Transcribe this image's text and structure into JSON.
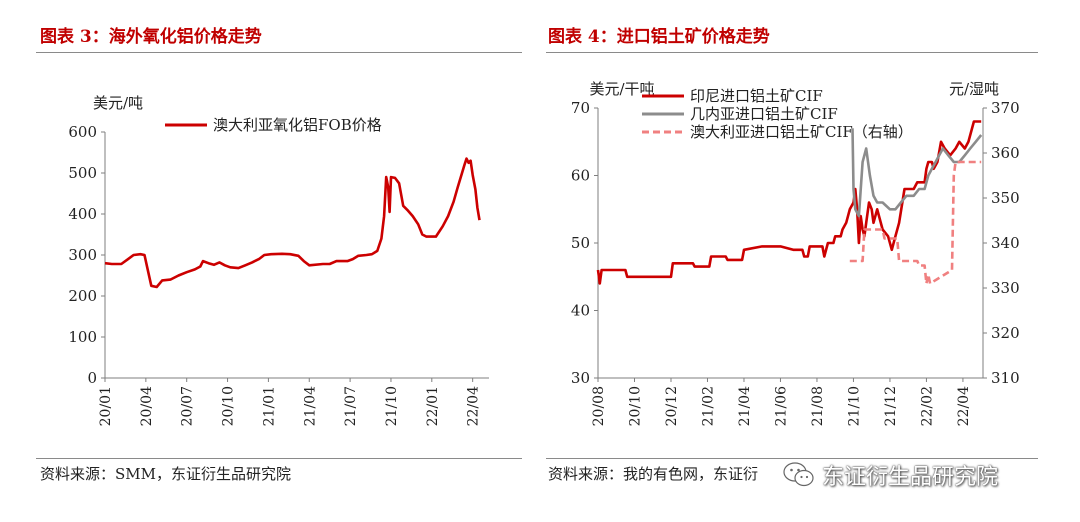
{
  "left_panel": {
    "title": "图表 3：海外氧化铝价格走势",
    "source": "资料来源：SMM，东证衍生品研究院"
  },
  "right_panel": {
    "title": "图表 4：进口铝土矿价格走势",
    "source": "资料来源：我的有色网，东证衍"
  },
  "watermark": {
    "text": "东证衍生品研究院",
    "icon": "wechat-icon"
  },
  "chart_data": [
    {
      "type": "line",
      "ylabel": "美元/吨",
      "ylim": [
        0,
        600
      ],
      "yticks": [
        0,
        100,
        200,
        300,
        400,
        500,
        600
      ],
      "xlim": [
        0,
        28.2
      ],
      "xticks": [
        {
          "label": "20/01",
          "x": 0
        },
        {
          "label": "20/04",
          "x": 3
        },
        {
          "label": "20/07",
          "x": 6
        },
        {
          "label": "20/10",
          "x": 9
        },
        {
          "label": "21/01",
          "x": 12
        },
        {
          "label": "21/04",
          "x": 15
        },
        {
          "label": "21/07",
          "x": 18
        },
        {
          "label": "21/10",
          "x": 21
        },
        {
          "label": "22/01",
          "x": 24
        },
        {
          "label": "22/04",
          "x": 27
        }
      ],
      "legend_position": "top-left",
      "series": [
        {
          "name": "澳大利亚氧化铝FOB价格",
          "color": "#cc0000",
          "style": "solid",
          "axis": "left",
          "points": [
            [
              0,
              280
            ],
            [
              0.5,
              278
            ],
            [
              1.2,
              278
            ],
            [
              1.7,
              290
            ],
            [
              2.1,
              300
            ],
            [
              2.6,
              302
            ],
            [
              2.9,
              300
            ],
            [
              3.1,
              270
            ],
            [
              3.4,
              225
            ],
            [
              3.8,
              222
            ],
            [
              4.2,
              238
            ],
            [
              4.8,
              240
            ],
            [
              5.4,
              250
            ],
            [
              6.0,
              258
            ],
            [
              6.6,
              265
            ],
            [
              7.0,
              272
            ],
            [
              7.2,
              285
            ],
            [
              7.6,
              280
            ],
            [
              8.0,
              276
            ],
            [
              8.4,
              282
            ],
            [
              8.8,
              275
            ],
            [
              9.2,
              270
            ],
            [
              9.8,
              268
            ],
            [
              10.3,
              275
            ],
            [
              10.8,
              282
            ],
            [
              11.3,
              290
            ],
            [
              11.7,
              300
            ],
            [
              12.2,
              302
            ],
            [
              13.0,
              303
            ],
            [
              13.6,
              302
            ],
            [
              14.2,
              298
            ],
            [
              14.6,
              285
            ],
            [
              15.0,
              275
            ],
            [
              16.0,
              278
            ],
            [
              16.5,
              278
            ],
            [
              17.0,
              285
            ],
            [
              17.8,
              285
            ],
            [
              18.2,
              290
            ],
            [
              18.6,
              298
            ],
            [
              19.2,
              300
            ],
            [
              19.6,
              302
            ],
            [
              20.0,
              310
            ],
            [
              20.3,
              340
            ],
            [
              20.5,
              395
            ],
            [
              20.65,
              490
            ],
            [
              20.8,
              465
            ],
            [
              20.9,
              405
            ],
            [
              21.0,
              490
            ],
            [
              21.3,
              488
            ],
            [
              21.6,
              475
            ],
            [
              21.9,
              420
            ],
            [
              22.2,
              410
            ],
            [
              22.6,
              395
            ],
            [
              23.0,
              375
            ],
            [
              23.3,
              350
            ],
            [
              23.6,
              345
            ],
            [
              24.3,
              345
            ],
            [
              24.8,
              370
            ],
            [
              25.2,
              395
            ],
            [
              25.6,
              430
            ],
            [
              25.9,
              465
            ],
            [
              26.2,
              498
            ],
            [
              26.4,
              520
            ],
            [
              26.55,
              535
            ],
            [
              26.7,
              525
            ],
            [
              26.85,
              530
            ],
            [
              27.0,
              495
            ],
            [
              27.2,
              460
            ],
            [
              27.35,
              415
            ],
            [
              27.5,
              385
            ]
          ]
        }
      ]
    },
    {
      "type": "line",
      "ylabel": "美元/干吨",
      "y2label": "元/湿吨",
      "ylim": [
        30,
        70
      ],
      "y2lim": [
        310,
        370
      ],
      "yticks": [
        30,
        40,
        50,
        60,
        70
      ],
      "y2ticks": [
        310,
        320,
        330,
        340,
        350,
        360,
        370
      ],
      "xlim": [
        0,
        21.1
      ],
      "xticks": [
        {
          "label": "20/08",
          "x": 0
        },
        {
          "label": "20/10",
          "x": 2
        },
        {
          "label": "20/12",
          "x": 4
        },
        {
          "label": "21/02",
          "x": 6
        },
        {
          "label": "21/04",
          "x": 8
        },
        {
          "label": "21/06",
          "x": 10
        },
        {
          "label": "21/08",
          "x": 12
        },
        {
          "label": "21/10",
          "x": 14
        },
        {
          "label": "21/12",
          "x": 16
        },
        {
          "label": "22/02",
          "x": 18
        },
        {
          "label": "22/04",
          "x": 20
        }
      ],
      "legend_position": "top-left",
      "series": [
        {
          "name": "印尼进口铝土矿CIF",
          "color": "#cc0000",
          "style": "solid",
          "axis": "left",
          "points": [
            [
              0,
              46
            ],
            [
              0.1,
              44
            ],
            [
              0.2,
              46
            ],
            [
              1.5,
              46
            ],
            [
              1.6,
              45
            ],
            [
              4.0,
              45
            ],
            [
              4.1,
              47
            ],
            [
              5.2,
              47
            ],
            [
              5.3,
              46.5
            ],
            [
              6.1,
              46.5
            ],
            [
              6.2,
              48
            ],
            [
              7.0,
              48
            ],
            [
              7.1,
              47.5
            ],
            [
              7.9,
              47.5
            ],
            [
              8.0,
              49
            ],
            [
              9.0,
              49.5
            ],
            [
              10.0,
              49.5
            ],
            [
              10.7,
              49
            ],
            [
              11.2,
              49
            ],
            [
              11.3,
              48
            ],
            [
              11.5,
              48
            ],
            [
              11.6,
              49.5
            ],
            [
              12.3,
              49.5
            ],
            [
              12.4,
              48
            ],
            [
              12.6,
              50
            ],
            [
              12.9,
              50
            ],
            [
              13.0,
              51
            ],
            [
              13.3,
              51
            ],
            [
              13.4,
              52
            ],
            [
              13.6,
              53
            ],
            [
              13.8,
              55
            ],
            [
              14.0,
              56
            ],
            [
              14.1,
              58
            ],
            [
              14.2,
              55
            ],
            [
              14.3,
              50
            ],
            [
              14.4,
              54
            ],
            [
              14.5,
              52
            ],
            [
              14.6,
              51
            ],
            [
              14.7,
              53
            ],
            [
              14.85,
              56
            ],
            [
              15.0,
              55
            ],
            [
              15.1,
              53
            ],
            [
              15.3,
              55
            ],
            [
              15.6,
              52
            ],
            [
              15.9,
              51
            ],
            [
              16.1,
              49
            ],
            [
              16.3,
              51
            ],
            [
              16.5,
              53
            ],
            [
              16.8,
              58
            ],
            [
              17.3,
              58
            ],
            [
              17.5,
              59
            ],
            [
              17.9,
              59
            ],
            [
              18.0,
              61
            ],
            [
              18.1,
              62
            ],
            [
              18.3,
              62
            ],
            [
              18.4,
              61
            ],
            [
              18.6,
              62
            ],
            [
              18.8,
              65
            ],
            [
              19.0,
              64
            ],
            [
              19.3,
              63
            ],
            [
              19.6,
              64
            ],
            [
              19.8,
              65
            ],
            [
              20.1,
              64
            ],
            [
              20.3,
              65
            ],
            [
              20.6,
              68
            ],
            [
              21.0,
              68
            ]
          ]
        },
        {
          "name": "几内亚进口铝土矿CIF",
          "color": "#8c8c8c",
          "style": "solid",
          "axis": "left",
          "points": [
            [
              13.95,
              67
            ],
            [
              14.0,
              58
            ],
            [
              14.1,
              55
            ],
            [
              14.3,
              54
            ],
            [
              14.5,
              62
            ],
            [
              14.7,
              64
            ],
            [
              14.9,
              60
            ],
            [
              15.1,
              57
            ],
            [
              15.3,
              56
            ],
            [
              15.6,
              56
            ],
            [
              16.0,
              55
            ],
            [
              16.3,
              55
            ],
            [
              16.6,
              56
            ],
            [
              16.9,
              57
            ],
            [
              17.3,
              57
            ],
            [
              17.6,
              58
            ],
            [
              17.9,
              58
            ],
            [
              18.1,
              60
            ],
            [
              18.3,
              61
            ],
            [
              18.5,
              62
            ],
            [
              18.7,
              63
            ],
            [
              18.9,
              64
            ],
            [
              19.2,
              63
            ],
            [
              19.5,
              62
            ],
            [
              19.8,
              62
            ],
            [
              20.1,
              63
            ],
            [
              20.4,
              64
            ],
            [
              20.7,
              65
            ],
            [
              21.0,
              66
            ]
          ]
        },
        {
          "name": "澳大利亚进口铝土矿CIF（右轴）",
          "color": "#f08080",
          "style": "dashed",
          "axis": "right",
          "points": [
            [
              13.8,
              336
            ],
            [
              14.5,
              336
            ],
            [
              14.6,
              343
            ],
            [
              15.6,
              343
            ],
            [
              15.7,
              341
            ],
            [
              16.4,
              341
            ],
            [
              16.5,
              336
            ],
            [
              17.5,
              336
            ],
            [
              17.6,
              335
            ],
            [
              17.9,
              335
            ],
            [
              18.0,
              331
            ],
            [
              18.1,
              333
            ],
            [
              18.2,
              331
            ],
            [
              18.6,
              332
            ],
            [
              19.0,
              333
            ],
            [
              19.4,
              334
            ],
            [
              19.5,
              355
            ],
            [
              19.6,
              358
            ],
            [
              21.0,
              358
            ]
          ]
        }
      ]
    }
  ]
}
